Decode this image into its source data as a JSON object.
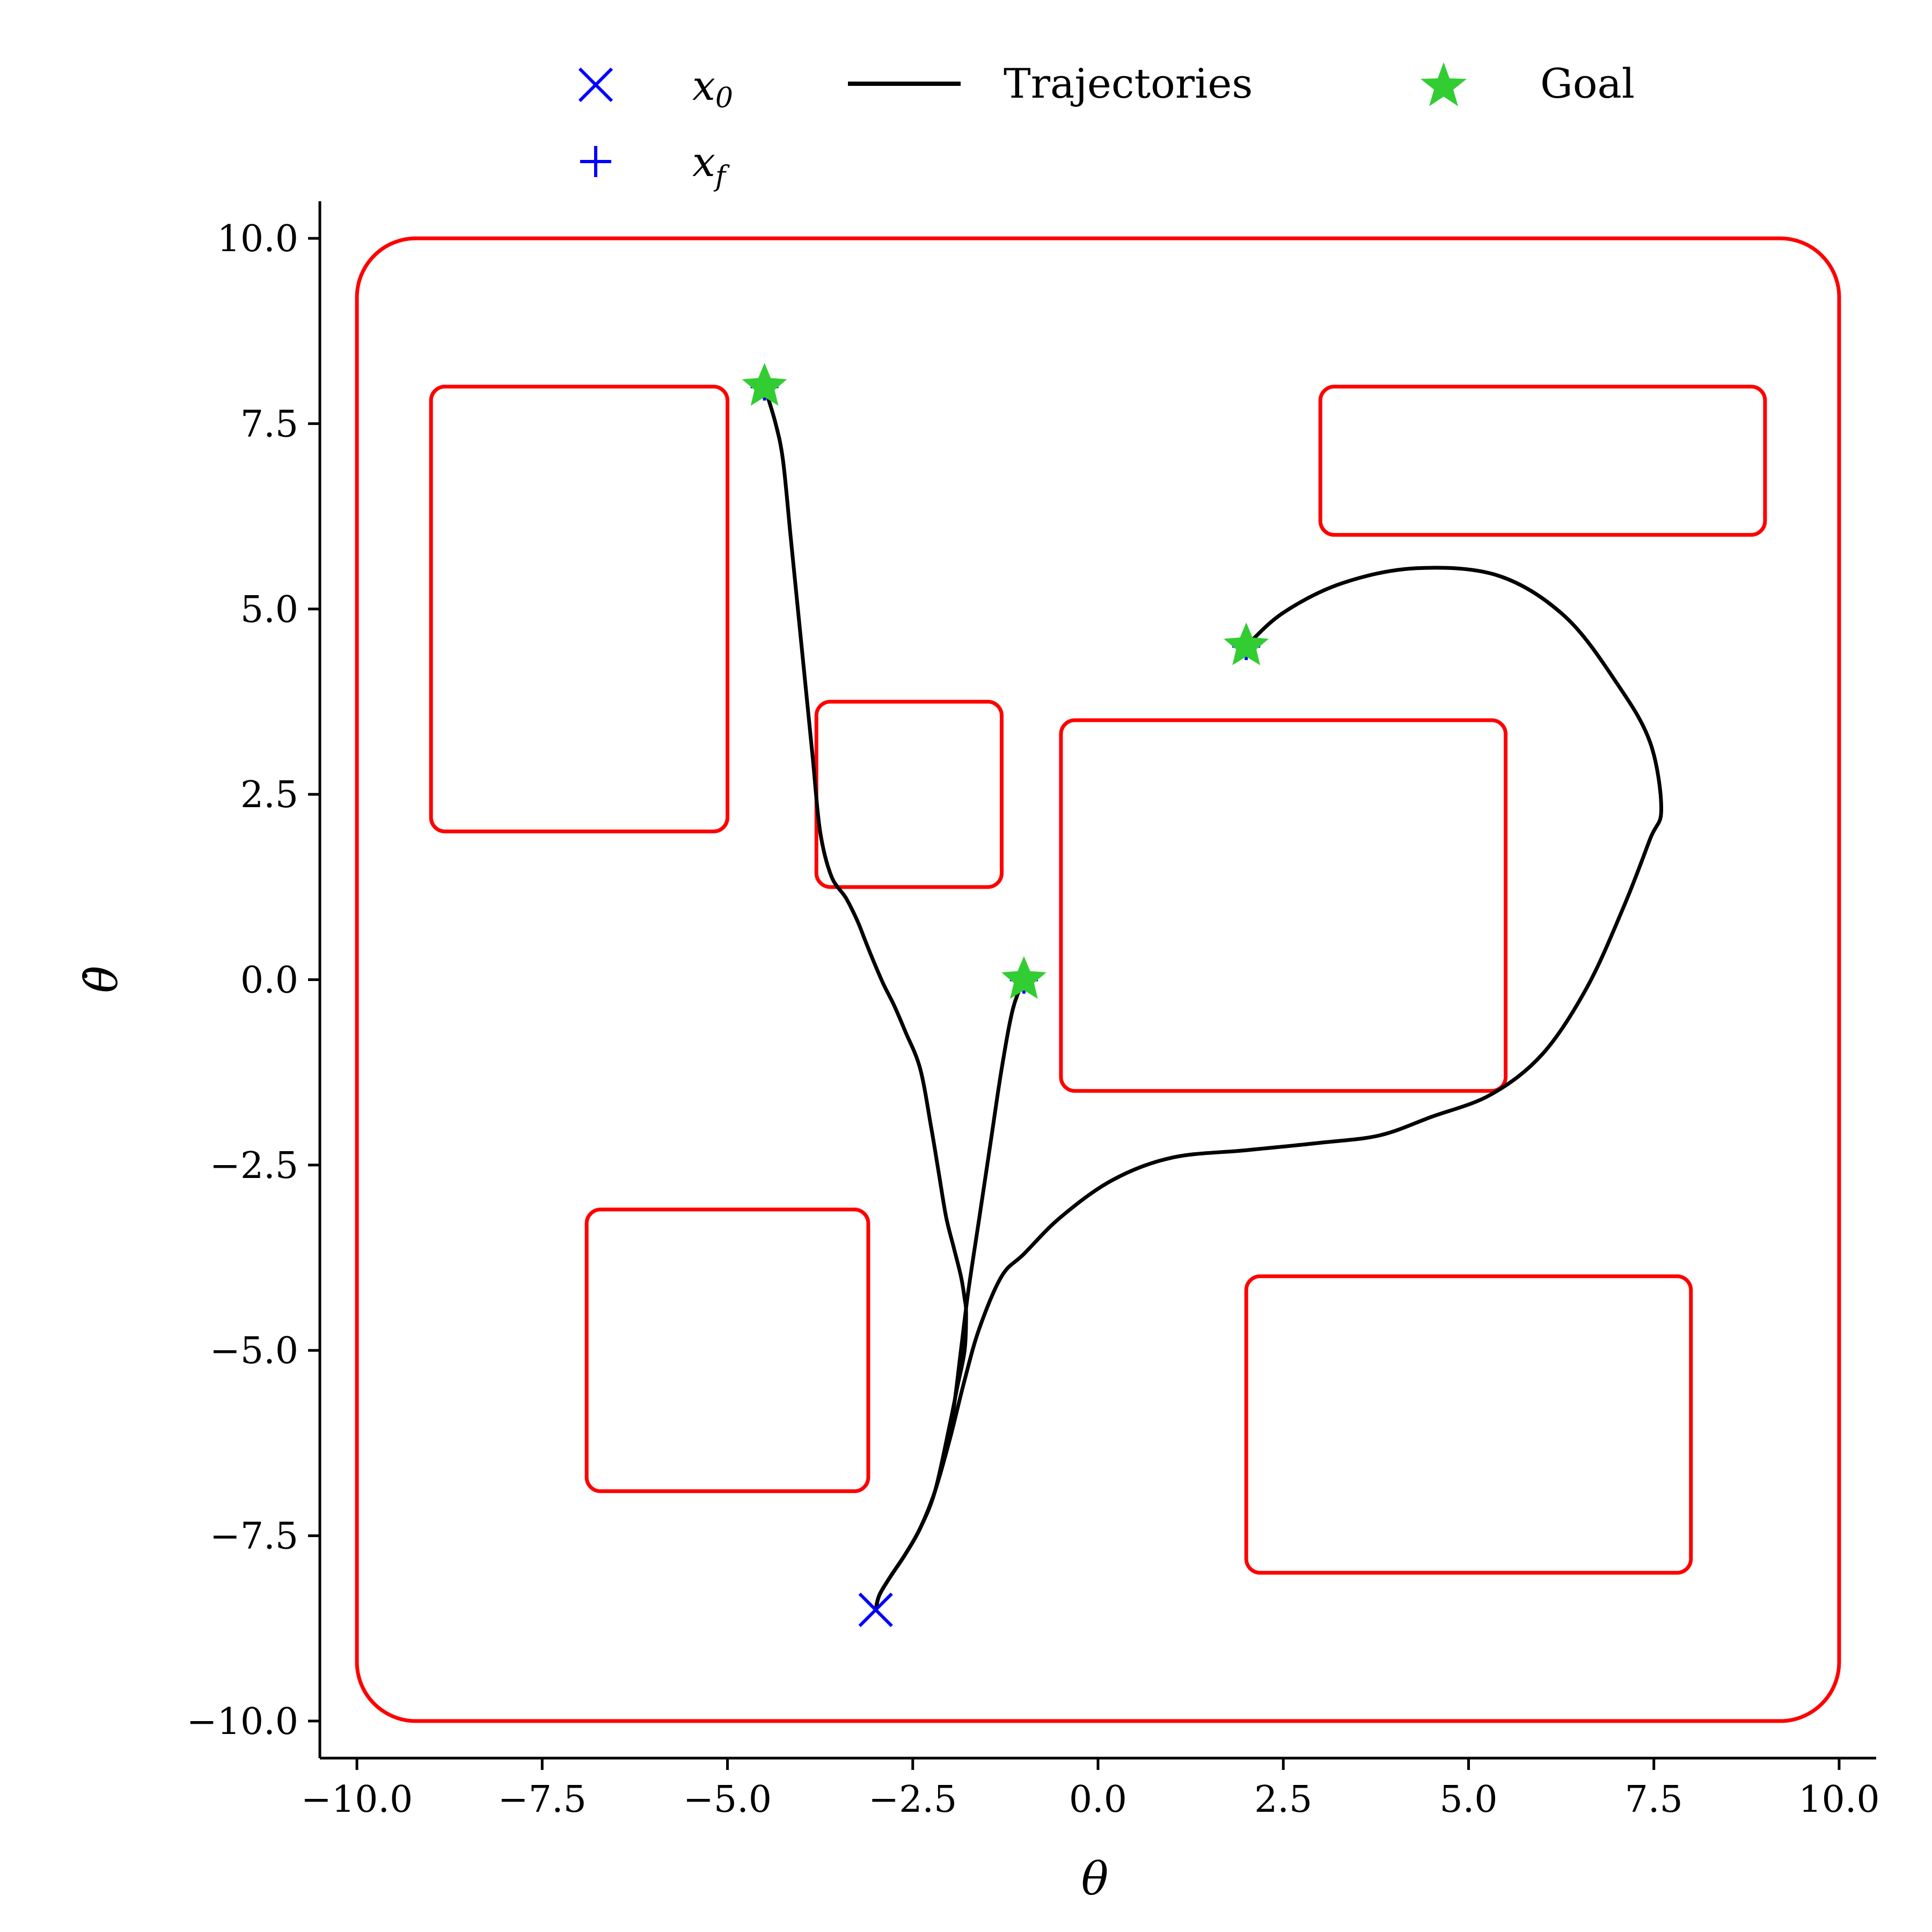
{
  "chart_data": {
    "type": "line",
    "xlabel": "θ",
    "ylabel": "θ̇",
    "xlim": [
      -10.5,
      10.5
    ],
    "ylim": [
      -10.5,
      10.5
    ],
    "xticks": [
      -10.0,
      -7.5,
      -5.0,
      -2.5,
      0.0,
      2.5,
      5.0,
      7.5,
      10.0
    ],
    "yticks": [
      -10.0,
      -7.5,
      -5.0,
      -2.5,
      0.0,
      2.5,
      5.0,
      7.5,
      10.0
    ],
    "xtick_labels": [
      "−10.0",
      "−7.5",
      "−5.0",
      "−2.5",
      "0.0",
      "2.5",
      "5.0",
      "7.5",
      "10.0"
    ],
    "ytick_labels": [
      "−10.0",
      "−7.5",
      "−5.0",
      "−2.5",
      "0.0",
      "2.5",
      "5.0",
      "7.5",
      "10.0"
    ],
    "grid": false,
    "legend": {
      "placement": "top-center-outside",
      "entries": [
        {
          "label": "x",
          "sub": "0",
          "marker": "x",
          "color": "#0000ff"
        },
        {
          "label": "Trajectories",
          "marker": "line",
          "color": "#000000"
        },
        {
          "label": "Goal",
          "marker": "star",
          "color": "#32cd32"
        },
        {
          "label": "x",
          "sub": "f",
          "marker": "plus",
          "color": "#0000ff"
        }
      ]
    },
    "obstacle_color": "#ff0000",
    "trajectory_color": "#000000",
    "start_color": "#0000ff",
    "goal_color": "#32cd32",
    "boundary": {
      "x0": -10,
      "x1": 10,
      "y0": -10,
      "y1": 10
    },
    "obstacles": [
      {
        "x0": -9,
        "x1": -5,
        "y0": 2,
        "y1": 8
      },
      {
        "x0": -3.8,
        "x1": -1.3,
        "y0": 1.25,
        "y1": 3.75
      },
      {
        "x0": -0.5,
        "x1": 5.5,
        "y0": -1.5,
        "y1": 3.5
      },
      {
        "x0": 3,
        "x1": 9,
        "y0": 6,
        "y1": 8
      },
      {
        "x0": -6.9,
        "x1": -3.1,
        "y0": -6.9,
        "y1": -3.1
      },
      {
        "x0": 2,
        "x1": 8,
        "y0": -8,
        "y1": -4
      }
    ],
    "start": {
      "x": -3,
      "y": -8.5
    },
    "goals": [
      {
        "x": -4.5,
        "y": 8
      },
      {
        "x": -1,
        "y": 0
      },
      {
        "x": 2,
        "y": 4.5
      }
    ],
    "series": [
      {
        "x": [
          -3,
          -2.95,
          -2.8,
          -2.6,
          -2.4,
          -2.2,
          -2.0,
          -1.9,
          -1.8,
          -1.78,
          -1.8,
          -1.85,
          -1.95,
          -2.05,
          -2.15,
          -2.25,
          -2.4,
          -2.6,
          -2.75,
          -2.9,
          -3.05,
          -3.15,
          -3.25,
          -3.4,
          -3.6,
          -3.75,
          -3.85,
          -3.95,
          -4.05,
          -4.15,
          -4.25,
          -4.35,
          -4.5
        ],
        "y": [
          -8.5,
          -8.3,
          -8.05,
          -7.75,
          -7.4,
          -6.9,
          -6.0,
          -5.5,
          -5.0,
          -4.5,
          -4.3,
          -4.0,
          -3.6,
          -3.2,
          -2.6,
          -2.0,
          -1.2,
          -0.7,
          -0.35,
          -0.05,
          0.3,
          0.55,
          0.8,
          1.1,
          1.4,
          2.0,
          3.0,
          4.0,
          5.0,
          6.0,
          7.0,
          7.5,
          8.0
        ]
      },
      {
        "x": [
          -3,
          -2.95,
          -2.8,
          -2.6,
          -2.4,
          -2.2,
          -2.05,
          -1.95,
          -1.85,
          -1.75,
          -1.6,
          -1.45,
          -1.3,
          -1.15,
          -1.0
        ],
        "y": [
          -8.5,
          -8.3,
          -8.05,
          -7.75,
          -7.4,
          -6.9,
          -6.3,
          -5.8,
          -5.0,
          -4.2,
          -3.2,
          -2.2,
          -1.2,
          -0.4,
          0.0
        ]
      },
      {
        "x": [
          -3,
          -2.95,
          -2.8,
          -2.6,
          -2.4,
          -2.2,
          -2.0,
          -1.8,
          -1.6,
          -1.3,
          -1.0,
          -0.5,
          0.2,
          1.0,
          2.0,
          3.0,
          3.8,
          4.5,
          5.3,
          6.0,
          6.6,
          7.1,
          7.45,
          7.6,
          7.45,
          7.0,
          6.3,
          5.4,
          4.3,
          3.3,
          2.5,
          2.0
        ],
        "y": [
          -8.5,
          -8.3,
          -8.05,
          -7.75,
          -7.4,
          -6.9,
          -6.2,
          -5.4,
          -4.7,
          -4.0,
          -3.7,
          -3.2,
          -2.7,
          -2.4,
          -2.3,
          -2.2,
          -2.1,
          -1.85,
          -1.55,
          -1.0,
          -0.1,
          1.0,
          1.9,
          2.3,
          3.2,
          4.0,
          4.9,
          5.45,
          5.55,
          5.35,
          4.95,
          4.5
        ]
      }
    ]
  }
}
